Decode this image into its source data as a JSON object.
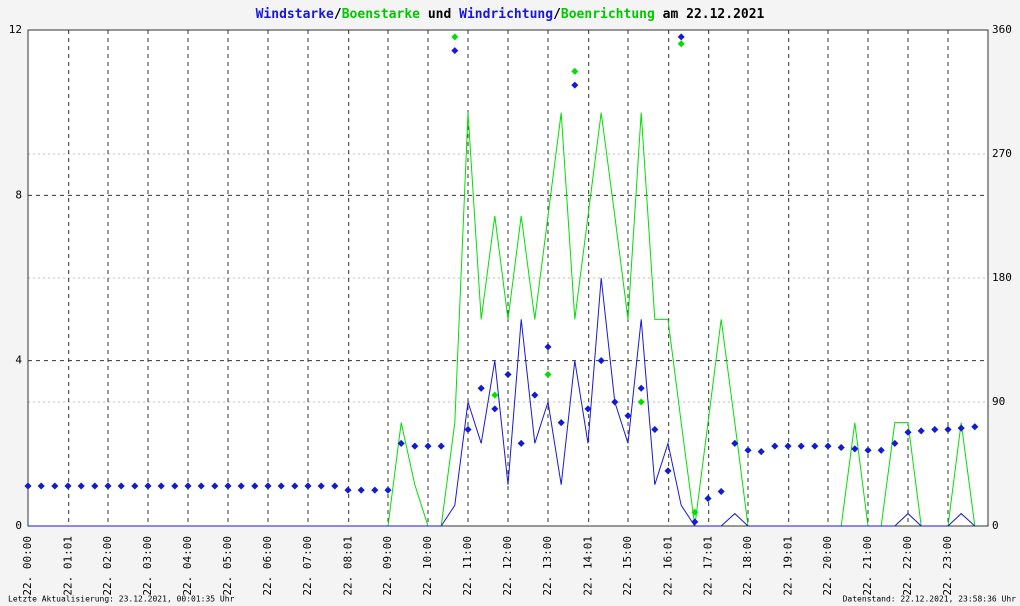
{
  "chart_data": {
    "type": "line",
    "title_separators": [
      "/",
      " und ",
      "/",
      " am 22.12.2021"
    ],
    "footer_left": "Letzte Aktualisierung: 23.12.2021, 00:01:35 Uhr",
    "footer_right": "Datenstand: 22.12.2021, 23:58:36 Uhr",
    "xlim": [
      0,
      24
    ],
    "xticks": [
      {
        "value": 0,
        "label": "22. 00:00"
      },
      {
        "value": 1.0167,
        "label": "22. 01:01"
      },
      {
        "value": 2,
        "label": "22. 02:00"
      },
      {
        "value": 3,
        "label": "22. 03:00"
      },
      {
        "value": 4,
        "label": "22. 04:00"
      },
      {
        "value": 5,
        "label": "22. 05:00"
      },
      {
        "value": 6,
        "label": "22. 06:00"
      },
      {
        "value": 7,
        "label": "22. 07:00"
      },
      {
        "value": 8.0167,
        "label": "22. 08:01"
      },
      {
        "value": 9,
        "label": "22. 09:00"
      },
      {
        "value": 10,
        "label": "22. 10:00"
      },
      {
        "value": 11,
        "label": "22. 11:00"
      },
      {
        "value": 12,
        "label": "22. 12:00"
      },
      {
        "value": 13,
        "label": "22. 13:00"
      },
      {
        "value": 14.0167,
        "label": "22. 14:01"
      },
      {
        "value": 15,
        "label": "22. 15:00"
      },
      {
        "value": 16.0167,
        "label": "22. 16:01"
      },
      {
        "value": 17.0167,
        "label": "22. 17:01"
      },
      {
        "value": 18,
        "label": "22. 18:00"
      },
      {
        "value": 19.0167,
        "label": "22. 19:01"
      },
      {
        "value": 20,
        "label": "22. 20:00"
      },
      {
        "value": 21,
        "label": "22. 21:00"
      },
      {
        "value": 22,
        "label": "22. 22:00"
      },
      {
        "value": 23,
        "label": "22. 23:00"
      }
    ],
    "ylim": [
      0,
      12
    ],
    "yticks": [
      0,
      4,
      8,
      12
    ],
    "y2lim": [
      0,
      360
    ],
    "y2ticks": [
      0,
      90,
      180,
      270,
      360
    ],
    "grid": true,
    "x": [
      0,
      0.33,
      0.67,
      1,
      1.33,
      1.67,
      2,
      2.33,
      2.67,
      3,
      3.33,
      3.67,
      4,
      4.33,
      4.67,
      5,
      5.33,
      5.67,
      6,
      6.33,
      6.67,
      7,
      7.33,
      7.67,
      8,
      8.33,
      8.67,
      9,
      9.33,
      9.67,
      10,
      10.33,
      10.67,
      11,
      11.33,
      11.67,
      12,
      12.33,
      12.67,
      13,
      13.33,
      13.67,
      14,
      14.33,
      14.67,
      15,
      15.33,
      15.67,
      16,
      16.33,
      16.67,
      17,
      17.33,
      17.67,
      18,
      18.33,
      18.67,
      19,
      19.33,
      19.67,
      20,
      20.33,
      20.67,
      21,
      21.33,
      21.67,
      22,
      22.33,
      22.67,
      23,
      23.33,
      23.67
    ],
    "series": [
      {
        "name": "Boenstarke",
        "color": "#00e000",
        "values": [
          0,
          0,
          0,
          0,
          0,
          0,
          0,
          0,
          0,
          0,
          0,
          0,
          0,
          0,
          0,
          0,
          0,
          0,
          0,
          0,
          0,
          0,
          0,
          0,
          0,
          0,
          0,
          0,
          2.5,
          1,
          0,
          0,
          2.5,
          10,
          5,
          7.5,
          5,
          7.5,
          5,
          7.5,
          10,
          5,
          7.5,
          10,
          7.5,
          5,
          10,
          5,
          5,
          2.5,
          0,
          2.5,
          5,
          2.5,
          0,
          0,
          0,
          0,
          0,
          0,
          0,
          0,
          2.5,
          0,
          0,
          2.5,
          2.5,
          0,
          0,
          0,
          2.5,
          0
        ]
      },
      {
        "name": "Windstarke",
        "color": "#1818d8",
        "values": [
          0,
          0,
          0,
          0,
          0,
          0,
          0,
          0,
          0,
          0,
          0,
          0,
          0,
          0,
          0,
          0,
          0,
          0,
          0,
          0,
          0,
          0,
          0,
          0,
          0,
          0,
          0,
          0,
          0,
          0,
          0,
          0,
          0.5,
          3,
          2,
          4,
          1,
          5,
          2,
          3,
          1,
          4,
          2,
          6,
          3,
          2,
          5,
          1,
          2,
          0.5,
          0,
          0,
          0,
          0.3,
          0,
          0,
          0,
          0,
          0,
          0,
          0,
          0,
          0,
          0,
          0,
          0,
          0.3,
          0,
          0,
          0,
          0.3,
          0
        ]
      },
      {
        "name": "Boenrichtung",
        "color": "#00e000",
        "axis": "y2",
        "values": [
          29,
          29,
          29,
          29,
          29,
          29,
          29,
          29,
          29,
          29,
          29,
          29,
          29,
          29,
          29,
          29,
          29,
          29,
          29,
          29,
          29,
          29,
          29,
          29,
          26,
          26,
          26,
          26,
          60,
          58,
          58,
          58,
          355,
          70,
          100,
          95,
          110,
          60,
          95,
          110,
          75,
          330,
          85,
          120,
          90,
          80,
          90,
          70,
          40,
          350,
          10,
          20,
          25,
          60,
          55,
          54,
          58,
          58,
          58,
          58,
          58,
          57,
          56,
          55,
          55,
          60,
          68,
          69,
          70,
          70,
          71,
          72
        ]
      },
      {
        "name": "Windrichtung",
        "color": "#1818d8",
        "axis": "y2",
        "values": [
          29,
          29,
          29,
          29,
          29,
          29,
          29,
          29,
          29,
          29,
          29,
          29,
          29,
          29,
          29,
          29,
          29,
          29,
          29,
          29,
          29,
          29,
          29,
          29,
          26,
          26,
          26,
          26,
          60,
          58,
          58,
          58,
          345,
          70,
          100,
          85,
          110,
          60,
          95,
          130,
          75,
          320,
          85,
          120,
          90,
          80,
          100,
          70,
          40,
          355,
          3,
          20,
          25,
          60,
          55,
          54,
          58,
          58,
          58,
          58,
          58,
          57,
          56,
          55,
          55,
          60,
          68,
          69,
          70,
          70,
          71,
          72
        ]
      }
    ]
  }
}
